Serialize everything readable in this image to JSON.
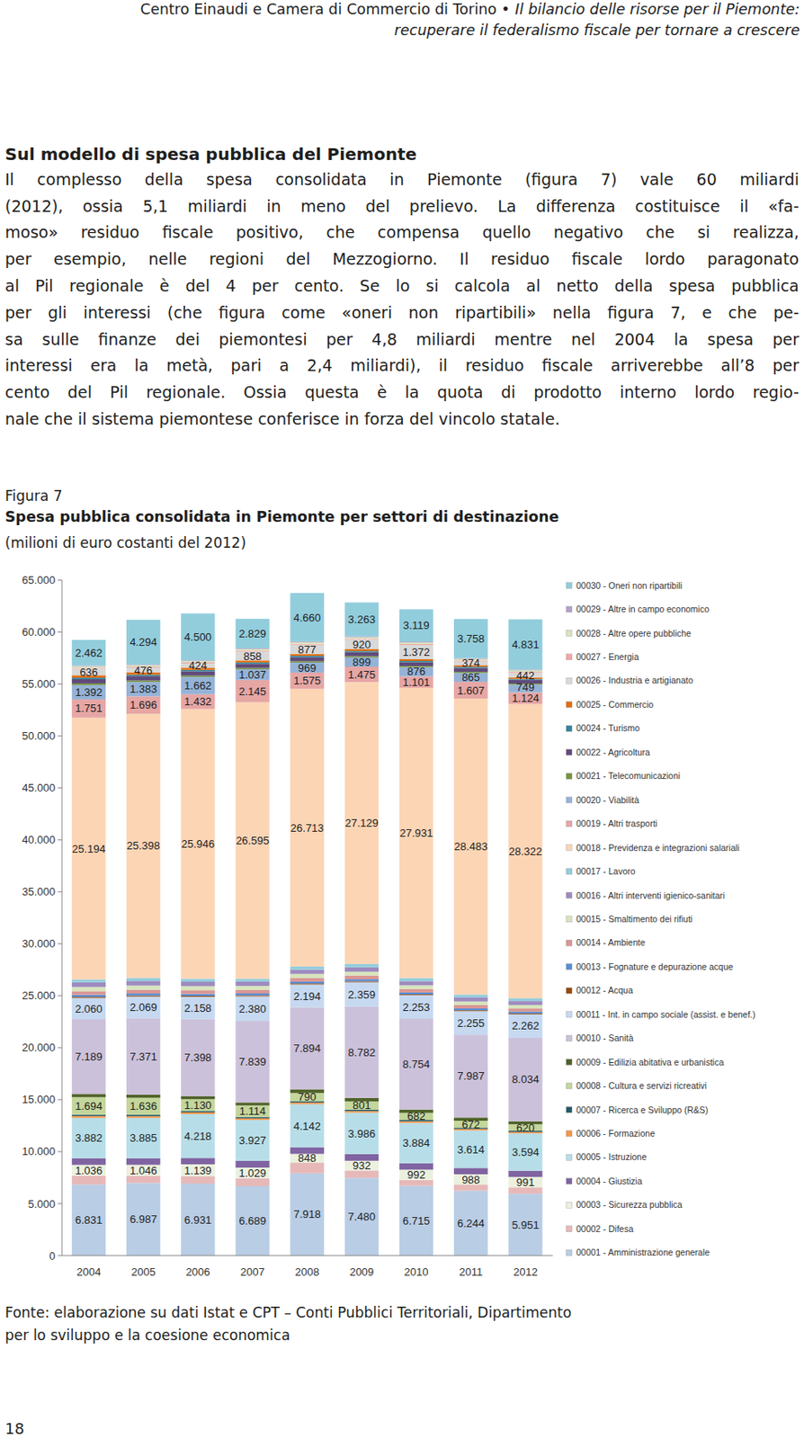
{
  "header": {
    "organization": "Centro Einaudi e Camera di Commercio di Torino •",
    "title_lines": [
      "Il bilancio delle risorse per il Piemonte:",
      "recuperare il federalismo fiscale per tornare a crescere"
    ]
  },
  "section": {
    "heading": "Sul modello di spesa pubblica del Piemonte",
    "paragraph_lines": [
      "Il complesso della spesa consolidata in Piemonte (figura 7) vale 60 miliardi",
      "(2012), ossia 5,1 miliardi in meno del prelievo. La differenza costituisce il «fa-",
      "moso» residuo fiscale positivo, che compensa quello negativo che si realizza,",
      "per esempio, nelle regioni del Mezzogiorno. Il residuo fiscale lordo paragonato",
      "al Pil regionale è del 4 per cento. Se lo si calcola al netto della spesa pubblica",
      "per gli interessi (che figura come «oneri non ripartibili» nella figura 7, e che pe-",
      "sa sulle finanze dei piemontesi per 4,8 miliardi mentre nel 2004 la spesa per",
      "interessi era la metà, pari a 2,4 miliardi), il residuo fiscale arriverebbe all’8 per",
      "cento del Pil regionale. Ossia questa è la quota di prodotto interno lordo regio-",
      "nale che il sistema piemontese conferisce in forza del vincolo statale."
    ]
  },
  "figure": {
    "label": "Figura 7",
    "source_lines": [
      "Fonte: elaborazione su dati Istat e CPT – Conti Pubblici Territoriali, Dipartimento",
      "per lo sviluppo e la coesione economica"
    ]
  },
  "page_number": "18",
  "chart_data": {
    "type": "bar",
    "stacked": true,
    "grid": false,
    "legend": "right",
    "title": "Spesa pubblica consolidata in Piemonte per settori di destinazione",
    "subtitle": "(milioni di euro costanti del 2012)",
    "categories": [
      "2004",
      "2005",
      "2006",
      "2007",
      "2008",
      "2009",
      "2010",
      "2011",
      "2012"
    ],
    "ylim": [
      0,
      65000
    ],
    "yticks": [
      0,
      {
        "value": 5000,
        "label": "5.000"
      },
      {
        "value": 10000,
        "label": "10.000"
      },
      {
        "value": 15000,
        "label": "15.000"
      },
      {
        "value": 20000,
        "label": "20.000"
      },
      {
        "value": 25000,
        "label": "25.000"
      },
      {
        "value": 30000,
        "label": "30.000"
      },
      {
        "value": 35000,
        "label": "35.000"
      },
      {
        "value": 40000,
        "label": "40.000"
      },
      {
        "value": 45000,
        "label": "45.000"
      },
      {
        "value": 50000,
        "label": "50.000"
      },
      {
        "value": 55000,
        "label": "55.000"
      },
      {
        "value": 60000,
        "label": "60.000"
      },
      {
        "value": 65000,
        "label": "65.000"
      }
    ],
    "series": [
      {
        "name": "00001 - Amministrazione generale",
        "color": "#b9cde5",
        "values": [
          6831,
          6987,
          6931,
          6689,
          7918,
          7480,
          6715,
          6244,
          5951
        ],
        "data_labels": true,
        "value_labels": [
          "6.831",
          "6.987",
          "6.931",
          "6.689",
          "7.918",
          "7.480",
          "6.715",
          "6.244",
          "5.951"
        ]
      },
      {
        "name": "00002 - Difesa",
        "color": "#e6b9b8",
        "values": [
          860,
          700,
          710,
          750,
          1020,
          710,
          560,
          590,
          620
        ]
      },
      {
        "name": "00003 - Sicurezza pubblica",
        "color": "#ebf1de",
        "values": [
          1036,
          1046,
          1139,
          1029,
          848,
          932,
          992,
          988,
          991
        ],
        "data_labels": true,
        "value_labels": [
          "1.036",
          "1.046",
          "1.139",
          "1.029",
          "848",
          "932",
          "992",
          "988",
          "991"
        ]
      },
      {
        "name": "00004 - Giustizia",
        "color": "#8064a2",
        "values": [
          640,
          630,
          620,
          650,
          640,
          650,
          620,
          610,
          600
        ]
      },
      {
        "name": "00005 - Istruzione",
        "color": "#b7dee8",
        "values": [
          3882,
          3885,
          4218,
          3927,
          4142,
          3986,
          3884,
          3614,
          3594
        ],
        "data_labels": true,
        "value_labels": [
          "3.882",
          "3.885",
          "4.218",
          "3.927",
          "4.142",
          "3.986",
          "3.884",
          "3.614",
          "3.594"
        ]
      },
      {
        "name": "00006 - Formazione",
        "color": "#f79646",
        "values": [
          180,
          170,
          170,
          160,
          160,
          150,
          150,
          140,
          140
        ]
      },
      {
        "name": "00007 - Ricerca e Sviluppo (R&S)",
        "color": "#215968",
        "values": [
          125,
          130,
          130,
          130,
          130,
          130,
          130,
          120,
          120
        ]
      },
      {
        "name": "00008 - Cultura e servizi ricreativi",
        "color": "#c3d69b",
        "values": [
          1694,
          1636,
          1130,
          1114,
          790,
          801,
          682,
          672,
          620
        ],
        "data_labels": true,
        "value_labels": [
          "1.694",
          "1.636",
          "1.130",
          "1.114",
          "790",
          "801",
          "682",
          "672",
          "620"
        ]
      },
      {
        "name": "00009 - Edilizia abitativa e urbanistica",
        "color": "#4f6228",
        "values": [
          295,
          300,
          300,
          280,
          350,
          330,
          320,
          300,
          290
        ]
      },
      {
        "name": "00010 - Sanità",
        "color": "#ccc1da",
        "values": [
          7189,
          7371,
          7398,
          7839,
          7894,
          8782,
          8754,
          7987,
          8034
        ],
        "data_labels": true,
        "value_labels": [
          "7.189",
          "7.371",
          "7.398",
          "7.839",
          "7.894",
          "8.782",
          "8.754",
          "7.987",
          "8.034"
        ]
      },
      {
        "name": "00011 - Int. in campo sociale (assist. e benef.)",
        "color": "#c6d9f1",
        "values": [
          2060,
          2069,
          2158,
          2380,
          2194,
          2359,
          2253,
          2255,
          2262
        ],
        "data_labels": true,
        "value_labels": [
          "2.060",
          "2.069",
          "2.158",
          "2.380",
          "2.194",
          "2.359",
          "2.253",
          "2.255",
          "2.262"
        ]
      },
      {
        "name": "00012 - Acqua",
        "color": "#984807",
        "values": [
          100,
          100,
          90,
          90,
          90,
          90,
          80,
          80,
          80
        ]
      },
      {
        "name": "00013 - Fognature e depurazione acque",
        "color": "#558ed5",
        "values": [
          200,
          200,
          190,
          190,
          190,
          190,
          180,
          180,
          170
        ]
      },
      {
        "name": "00014 - Ambiente",
        "color": "#d99694",
        "values": [
          350,
          360,
          350,
          340,
          360,
          360,
          330,
          320,
          300
        ]
      },
      {
        "name": "00015 - Smaltimento dei rifiuti",
        "color": "#d7e4bd",
        "values": [
          400,
          400,
          390,
          380,
          380,
          370,
          360,
          350,
          340
        ]
      },
      {
        "name": "00016 - Altri interventi igienico-sanitari",
        "color": "#9e8bbf",
        "values": [
          450,
          440,
          430,
          420,
          410,
          420,
          400,
          390,
          380
        ]
      },
      {
        "name": "00017 - Lavoro",
        "color": "#93cddd",
        "values": [
          280,
          300,
          290,
          280,
          300,
          320,
          300,
          280,
          260
        ]
      },
      {
        "name": "00018 - Previdenza e integrazioni salariali",
        "color": "#fcd5b5",
        "values": [
          25194,
          25398,
          25946,
          26595,
          26713,
          27129,
          27931,
          28483,
          28322
        ],
        "data_labels": true,
        "value_labels": [
          "25.194",
          "25.398",
          "25.946",
          "26.595",
          "26.713",
          "27.129",
          "27.931",
          "28.483",
          "28.322"
        ]
      },
      {
        "name": "00019 - Altri trasporti",
        "color": "#e6a6a4",
        "values": [
          1751,
          1696,
          1432,
          2145,
          1575,
          1475,
          1101,
          1607,
          1124
        ],
        "data_labels": true,
        "value_labels": [
          "1.751",
          "1.696",
          "1.432",
          "2.145",
          "1.575",
          "1.475",
          "1.101",
          "1.607",
          "1.124"
        ]
      },
      {
        "name": "00020 - Viabilità",
        "color": "#95b3d7",
        "values": [
          1392,
          1383,
          1662,
          1037,
          969,
          899,
          876,
          865,
          749
        ],
        "data_labels": true,
        "value_labels": [
          "1.392",
          "1.383",
          "1.662",
          "1.037",
          "969",
          "899",
          "876",
          "865",
          "749"
        ]
      },
      {
        "name": "00021 - Telecomunicazioni",
        "color": "#77933c",
        "values": [
          150,
          140,
          130,
          130,
          130,
          120,
          120,
          110,
          100
        ]
      },
      {
        "name": "00022 - Agricoltura",
        "color": "#604a7b",
        "values": [
          400,
          420,
          410,
          400,
          390,
          380,
          370,
          360,
          350
        ]
      },
      {
        "name": "00024 - Turismo",
        "color": "#31859c",
        "values": [
          150,
          140,
          140,
          130,
          130,
          120,
          120,
          110,
          100
        ]
      },
      {
        "name": "00025 - Commercio",
        "color": "#e46c0a",
        "values": [
          230,
          200,
          200,
          190,
          180,
          170,
          160,
          150,
          140
        ]
      },
      {
        "name": "00026 - Industria e artigianato",
        "color": "#d9d9d9",
        "values": [
          636,
          476,
          424,
          858,
          877,
          920,
          1372,
          374,
          442
        ],
        "data_labels": true,
        "value_labels": [
          "636",
          "476",
          "424",
          "858",
          "877",
          "920",
          "1.372",
          "374",
          "442"
        ]
      },
      {
        "name": "00027 - Energia",
        "color": "#f2a7a5",
        "values": [
          80,
          80,
          80,
          90,
          90,
          90,
          90,
          90,
          90
        ]
      },
      {
        "name": "00028 - Altre opere pubbliche",
        "color": "#d7e4bd",
        "values": [
          150,
          150,
          150,
          150,
          150,
          150,
          150,
          150,
          150
        ]
      },
      {
        "name": "00029 - Altre in campo economico",
        "color": "#b3a2c7",
        "values": [
          75,
          75,
          75,
          75,
          75,
          75,
          75,
          75,
          75
        ]
      },
      {
        "name": "00030 - Oneri non ripartibili",
        "color": "#92cddc",
        "values": [
          2462,
          4294,
          4500,
          2829,
          4660,
          3263,
          3119,
          3758,
          4831
        ],
        "data_labels": true,
        "value_labels": [
          "2.462",
          "4.294",
          "4.500",
          "2.829",
          "4.660",
          "3.263",
          "3.119",
          "3.758",
          "4.831"
        ]
      }
    ]
  }
}
